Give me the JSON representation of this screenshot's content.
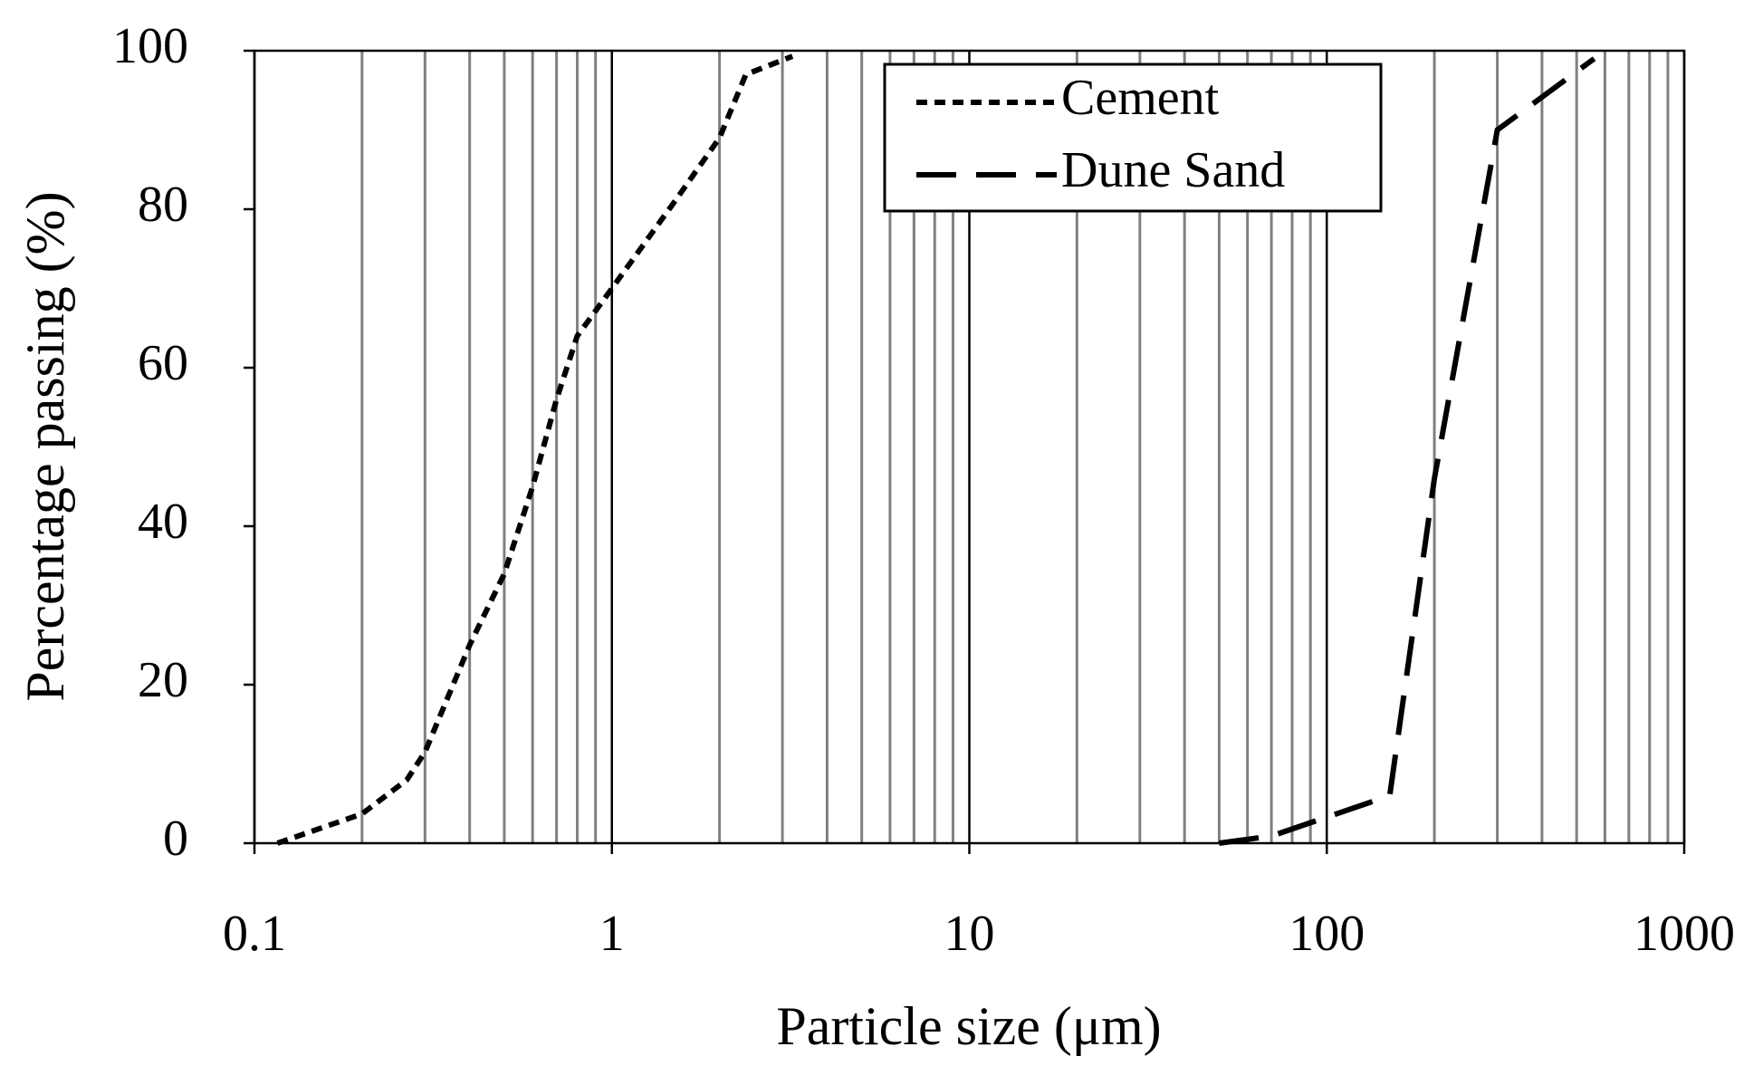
{
  "chart_data": {
    "type": "line",
    "x_label": "Particle size (μm)",
    "y_label": "Percentage passing (%)",
    "xscale": "log",
    "xlim": [
      0.1,
      1000
    ],
    "xticks": [
      0.1,
      1,
      10,
      100,
      1000
    ],
    "ylim": [
      0,
      100
    ],
    "yticks": [
      0,
      20,
      40,
      60,
      80,
      100
    ],
    "grid": true,
    "minor_grid": true,
    "legend": "top-right",
    "series": [
      {
        "name": "Cement",
        "color": "#000000",
        "dash": "short",
        "x": [
          0.116,
          0.2,
          0.267,
          0.3,
          0.4,
          0.5,
          0.6,
          0.7,
          0.8,
          1,
          1.5,
          2,
          2.37,
          3.2
        ],
        "values": [
          0,
          3.7,
          8,
          11.5,
          25,
          34,
          45,
          56,
          64,
          70,
          81,
          89,
          97,
          99.3
        ]
      },
      {
        "name": "Dune Sand",
        "color": "#000000",
        "dash": "long",
        "x": [
          50,
          70,
          150,
          200,
          300,
          560
        ],
        "values": [
          0,
          0.9,
          6,
          46,
          90,
          99
        ]
      }
    ]
  }
}
